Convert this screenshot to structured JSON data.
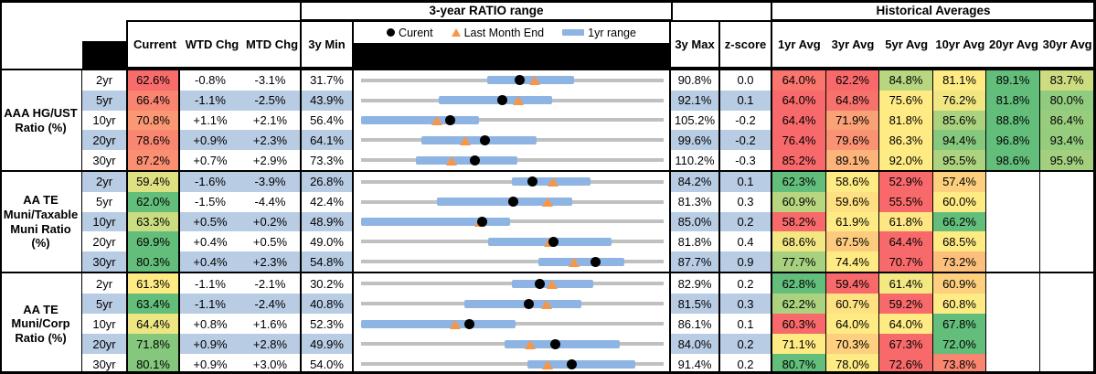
{
  "header": {
    "ratio_range_title": "3-year RATIO range",
    "historical_title": "Historical Averages",
    "col_current": "Current",
    "col_wtd": "WTD Chg",
    "col_mtd": "MTD Chg",
    "col_min": "3y Min",
    "col_max": "3y Max",
    "col_z": "z-score",
    "avg_cols": [
      "1yr Avg",
      "3yr Avg",
      "5yr Avg",
      "10yr Avg",
      "20yr Avg",
      "30yr Avg"
    ],
    "legend_current": "Curent",
    "legend_last_month": "Last Month End",
    "legend_1yr_range": "1yr range"
  },
  "colors": {
    "stripe_blue": "#B8CCE4",
    "range_bar_blue": "#8DB4E2",
    "track_gray": "#C0C0C0",
    "marker_black": "#000000",
    "triangle_orange": "#F79646",
    "scale_red": "#F8696B",
    "scale_yellow": "#FFEB84",
    "scale_green": "#63BE7B"
  },
  "chart_data": {
    "type": "table",
    "title": "3-year RATIO range",
    "x_axis": "ratio %, each row scaled from its 3y Min to 3y Max",
    "markers": [
      "current (black dot)",
      "last month end (orange triangle)",
      "1yr range (blue bar)"
    ],
    "groups": [
      {
        "label": "AAA HG/UST Ratio (%)",
        "rows": [
          {
            "tenor": "2yr",
            "current": 62.6,
            "current_bg": "#F86C6B",
            "wtd_chg": "-0.8%",
            "mtd_chg": "-3.1%",
            "min_3y": 31.7,
            "max_3y": 90.8,
            "z_score": "0.0",
            "last_month_end": 65.7,
            "range_1yr": [
              56.3,
              73.3
            ],
            "avgs": [
              {
                "v": 64.0,
                "bg": "#F9756D"
              },
              {
                "v": 62.2,
                "bg": "#F8696B"
              },
              {
                "v": 84.8,
                "bg": "#B7D680"
              },
              {
                "v": 81.1,
                "bg": "#FFEB84"
              },
              {
                "v": 89.1,
                "bg": "#63BE7B"
              },
              {
                "v": 83.7,
                "bg": "#CCDC81"
              }
            ]
          },
          {
            "tenor": "5yr",
            "current": 66.4,
            "current_bg": "#F98470",
            "wtd_chg": "-1.1%",
            "mtd_chg": "-2.5%",
            "min_3y": 43.9,
            "max_3y": 92.1,
            "z_score": "0.1",
            "last_month_end": 68.9,
            "range_1yr": [
              56.3,
              74.4
            ],
            "avgs": [
              {
                "v": 64.0,
                "bg": "#F8696B"
              },
              {
                "v": 64.8,
                "bg": "#F8726D"
              },
              {
                "v": 75.6,
                "bg": "#FFEB84"
              },
              {
                "v": 76.2,
                "bg": "#F0E783"
              },
              {
                "v": 81.8,
                "bg": "#63BE7B"
              },
              {
                "v": 80.0,
                "bg": "#90CB7E"
              }
            ]
          },
          {
            "tenor": "10yr",
            "current": 70.8,
            "current_bg": "#FB9874",
            "wtd_chg": "+1.1%",
            "mtd_chg": "+2.1%",
            "min_3y": 56.4,
            "max_3y": 105.2,
            "z_score": "-0.2",
            "last_month_end": 68.7,
            "range_1yr": [
              56.4,
              75.4
            ],
            "avgs": [
              {
                "v": 64.4,
                "bg": "#F8696B"
              },
              {
                "v": 71.9,
                "bg": "#FBA176"
              },
              {
                "v": 81.8,
                "bg": "#FFEB84"
              },
              {
                "v": 85.6,
                "bg": "#AAD27F"
              },
              {
                "v": 88.8,
                "bg": "#63BE7B"
              },
              {
                "v": 86.4,
                "bg": "#98CD7E"
              }
            ]
          },
          {
            "tenor": "20yr",
            "current": 78.6,
            "current_bg": "#F98670",
            "wtd_chg": "+0.9%",
            "mtd_chg": "+2.3%",
            "min_3y": 64.1,
            "max_3y": 99.6,
            "z_score": "-0.2",
            "last_month_end": 76.3,
            "range_1yr": [
              71.2,
              84.7
            ],
            "avgs": [
              {
                "v": 76.4,
                "bg": "#F8696B"
              },
              {
                "v": 79.6,
                "bg": "#FA9373"
              },
              {
                "v": 86.3,
                "bg": "#FFEB84"
              },
              {
                "v": 94.4,
                "bg": "#86C87D"
              },
              {
                "v": 96.8,
                "bg": "#63BE7B"
              },
              {
                "v": 93.4,
                "bg": "#95CC7E"
              }
            ]
          },
          {
            "tenor": "30yr",
            "current": 87.2,
            "current_bg": "#FA8F72",
            "wtd_chg": "+0.7%",
            "mtd_chg": "+2.9%",
            "min_3y": 73.3,
            "max_3y": 110.2,
            "z_score": "-0.3",
            "last_month_end": 84.3,
            "range_1yr": [
              80.0,
              92.4
            ],
            "avgs": [
              {
                "v": 85.2,
                "bg": "#F8696B"
              },
              {
                "v": 89.1,
                "bg": "#FCB47A"
              },
              {
                "v": 92.0,
                "bg": "#FFEB84"
              },
              {
                "v": 95.5,
                "bg": "#ACD37F"
              },
              {
                "v": 98.6,
                "bg": "#63BE7B"
              },
              {
                "v": 95.9,
                "bg": "#A3D07F"
              }
            ]
          }
        ]
      },
      {
        "label": "AA TE Muni/Taxable Muni Ratio (%)",
        "rows": [
          {
            "tenor": "2yr",
            "current": 59.4,
            "current_bg": "#DDE182",
            "wtd_chg": "-1.6%",
            "mtd_chg": "-3.9%",
            "min_3y": 26.8,
            "max_3y": 84.2,
            "z_score": "0.1",
            "last_month_end": 63.3,
            "range_1yr": [
              55.4,
              70.4
            ],
            "avgs": [
              {
                "v": 62.3,
                "bg": "#63BE7B"
              },
              {
                "v": 58.6,
                "bg": "#FFEB84"
              },
              {
                "v": 52.9,
                "bg": "#F8696B"
              },
              {
                "v": 57.4,
                "bg": "#FDCF7F"
              },
              null,
              null
            ]
          },
          {
            "tenor": "5yr",
            "current": 62.0,
            "current_bg": "#63BE7B",
            "wtd_chg": "-1.5%",
            "mtd_chg": "-4.4%",
            "min_3y": 42.4,
            "max_3y": 81.3,
            "z_score": "0.3",
            "last_month_end": 66.4,
            "range_1yr": [
              52.2,
              69.5
            ],
            "avgs": [
              {
                "v": 60.9,
                "bg": "#B8D680"
              },
              {
                "v": 59.6,
                "bg": "#FEDF81"
              },
              {
                "v": 55.5,
                "bg": "#F8696B"
              },
              {
                "v": 60.0,
                "bg": "#FFEB84"
              },
              null,
              null
            ]
          },
          {
            "tenor": "10yr",
            "current": 63.3,
            "current_bg": "#CCDC81",
            "wtd_chg": "+0.5%",
            "mtd_chg": "+0.2%",
            "min_3y": 48.9,
            "max_3y": 85.0,
            "z_score": "0.2",
            "last_month_end": 63.1,
            "range_1yr": [
              48.9,
              66.7
            ],
            "avgs": [
              {
                "v": 58.2,
                "bg": "#F8696B"
              },
              {
                "v": 61.9,
                "bg": "#FFEB84"
              },
              {
                "v": 61.8,
                "bg": "#FEE783"
              },
              {
                "v": 66.2,
                "bg": "#63BE7B"
              },
              null,
              null
            ]
          },
          {
            "tenor": "20yr",
            "current": 69.9,
            "current_bg": "#63BE7B",
            "wtd_chg": "+0.4%",
            "mtd_chg": "+0.5%",
            "min_3y": 49.0,
            "max_3y": 81.8,
            "z_score": "0.4",
            "last_month_end": 69.4,
            "range_1yr": [
              62.8,
              76.2
            ],
            "avgs": [
              {
                "v": 68.6,
                "bg": "#F3E783"
              },
              {
                "v": 67.5,
                "bg": "#FDCB7D"
              },
              {
                "v": 64.4,
                "bg": "#F8696B"
              },
              {
                "v": 68.5,
                "bg": "#FFEB84"
              },
              null,
              null
            ]
          },
          {
            "tenor": "30yr",
            "current": 80.3,
            "current_bg": "#63BE7B",
            "wtd_chg": "+0.4%",
            "mtd_chg": "+2.3%",
            "min_3y": 54.8,
            "max_3y": 87.7,
            "z_score": "0.9",
            "last_month_end": 78.0,
            "range_1yr": [
              74.1,
              83.4
            ],
            "avgs": [
              {
                "v": 77.7,
                "bg": "#A7D17F"
              },
              {
                "v": 74.4,
                "bg": "#FFEB84"
              },
              {
                "v": 70.7,
                "bg": "#F8696B"
              },
              {
                "v": 73.2,
                "bg": "#FCC07C"
              },
              null,
              null
            ]
          }
        ]
      },
      {
        "label": "AA TE Muni/Corp Ratio (%)",
        "rows": [
          {
            "tenor": "2yr",
            "current": 61.3,
            "current_bg": "#FFEB84",
            "wtd_chg": "-1.1%",
            "mtd_chg": "-2.1%",
            "min_3y": 30.2,
            "max_3y": 82.9,
            "z_score": "0.2",
            "last_month_end": 63.4,
            "range_1yr": [
              56.4,
              70.6
            ],
            "avgs": [
              {
                "v": 62.8,
                "bg": "#63BE7B"
              },
              {
                "v": 59.4,
                "bg": "#F8696B"
              },
              {
                "v": 61.4,
                "bg": "#F4E883"
              },
              {
                "v": 60.9,
                "bg": "#FDCF7F"
              },
              null,
              null
            ]
          },
          {
            "tenor": "5yr",
            "current": 63.4,
            "current_bg": "#63BE7B",
            "wtd_chg": "-1.1%",
            "mtd_chg": "-2.4%",
            "min_3y": 40.8,
            "max_3y": 81.5,
            "z_score": "0.3",
            "last_month_end": 65.8,
            "range_1yr": [
              54.7,
              70.4
            ],
            "avgs": [
              {
                "v": 62.2,
                "bg": "#ABD27F"
              },
              {
                "v": 60.7,
                "bg": "#FEE282"
              },
              {
                "v": 59.2,
                "bg": "#F8696B"
              },
              {
                "v": 60.8,
                "bg": "#FFEB84"
              },
              null,
              null
            ]
          },
          {
            "tenor": "10yr",
            "current": 64.4,
            "current_bg": "#EEE683",
            "wtd_chg": "+0.8%",
            "mtd_chg": "+1.6%",
            "min_3y": 52.3,
            "max_3y": 86.1,
            "z_score": "0.1",
            "last_month_end": 62.8,
            "range_1yr": [
              52.3,
              69.6
            ],
            "avgs": [
              {
                "v": 60.3,
                "bg": "#F8696B"
              },
              {
                "v": 64.0,
                "bg": "#FFEB84"
              },
              {
                "v": 64.0,
                "bg": "#FFEB84"
              },
              {
                "v": 67.8,
                "bg": "#63BE7B"
              },
              null,
              null
            ]
          },
          {
            "tenor": "20yr",
            "current": 71.8,
            "current_bg": "#85C87D",
            "wtd_chg": "+0.9%",
            "mtd_chg": "+2.8%",
            "min_3y": 49.9,
            "max_3y": 84.0,
            "z_score": "0.2",
            "last_month_end": 69.0,
            "range_1yr": [
              66.1,
              79.1
            ],
            "avgs": [
              {
                "v": 71.1,
                "bg": "#FFEB84"
              },
              {
                "v": 70.3,
                "bg": "#FDCF7F"
              },
              {
                "v": 67.3,
                "bg": "#F8696B"
              },
              {
                "v": 72.0,
                "bg": "#63BE7B"
              },
              null,
              null
            ]
          },
          {
            "tenor": "30yr",
            "current": 80.1,
            "current_bg": "#85C87D",
            "wtd_chg": "+0.9%",
            "mtd_chg": "+3.0%",
            "min_3y": 54.0,
            "max_3y": 91.4,
            "z_score": "0.2",
            "last_month_end": 77.1,
            "range_1yr": [
              74.6,
              87.9
            ],
            "avgs": [
              {
                "v": 80.7,
                "bg": "#63BE7B"
              },
              {
                "v": 78.0,
                "bg": "#FFEB84"
              },
              {
                "v": 72.6,
                "bg": "#F8696B"
              },
              {
                "v": 73.8,
                "bg": "#F98670"
              },
              null,
              null
            ]
          }
        ]
      }
    ]
  }
}
